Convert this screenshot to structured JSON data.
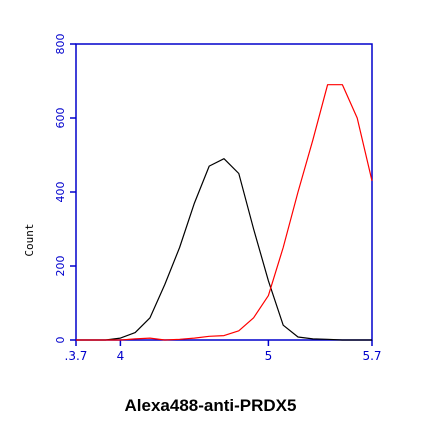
{
  "caption": "Alexa488-anti-PRDX5",
  "chart_data": {
    "type": "line",
    "title": "",
    "ylabel": "Count",
    "xlabel": "",
    "xscale": "log",
    "xlim": [
      3.7,
      5.7
    ],
    "ylim": [
      0,
      800
    ],
    "yticks": [
      0,
      200,
      400,
      600,
      800
    ],
    "yticklabels": [
      "0",
      "200",
      "400",
      "600",
      "800"
    ],
    "xticks": [
      3.7,
      4,
      5,
      5.7
    ],
    "xticklabels": [
      ".3.7",
      "4",
      "5",
      "5.7"
    ],
    "colors": {
      "axis": "#0000cc",
      "series_black": "#000000",
      "series_red": "#ff0000"
    },
    "series": [
      {
        "color": "#000000",
        "x": [
          3.7,
          3.8,
          3.9,
          4.0,
          4.1,
          4.2,
          4.3,
          4.4,
          4.5,
          4.6,
          4.7,
          4.8,
          4.9,
          5.0,
          5.1,
          5.2,
          5.3,
          5.4,
          5.5,
          5.6,
          5.7
        ],
        "y": [
          0,
          0,
          0,
          5,
          20,
          60,
          150,
          250,
          370,
          470,
          490,
          450,
          300,
          160,
          40,
          8,
          3,
          2,
          0,
          0,
          0
        ]
      },
      {
        "color": "#ff0000",
        "x": [
          3.7,
          3.8,
          3.9,
          4.0,
          4.1,
          4.2,
          4.3,
          4.4,
          4.5,
          4.6,
          4.7,
          4.8,
          4.9,
          5.0,
          5.1,
          5.2,
          5.3,
          5.4,
          5.5,
          5.6,
          5.7
        ],
        "y": [
          0,
          0,
          0,
          0,
          3,
          5,
          0,
          2,
          5,
          10,
          12,
          25,
          60,
          120,
          250,
          400,
          540,
          690,
          690,
          600,
          430
        ]
      }
    ]
  }
}
